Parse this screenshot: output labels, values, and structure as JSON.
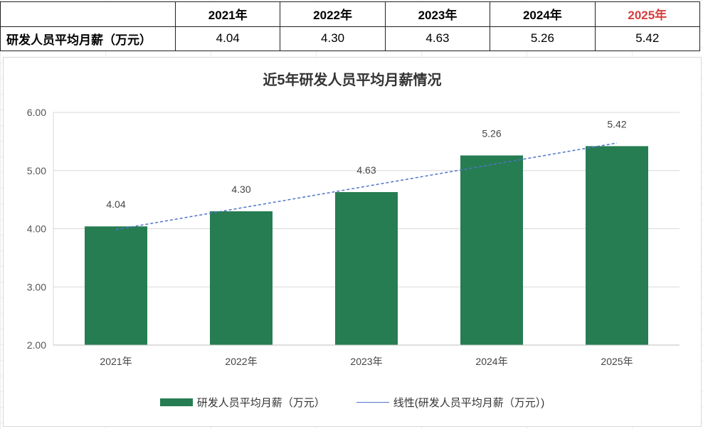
{
  "table": {
    "headers": [
      "",
      "2021年",
      "2022年",
      "2023年",
      "2024年",
      "2025年"
    ],
    "row_label": "研发人员平均月薪（万元）",
    "values": [
      "4.04",
      "4.30",
      "4.63",
      "5.26",
      "5.42"
    ]
  },
  "chart_data": {
    "type": "bar",
    "title": "近5年研发人员平均月薪情况",
    "categories": [
      "2021年",
      "2022年",
      "2023年",
      "2024年",
      "2025年"
    ],
    "series": [
      {
        "name": "研发人员平均月薪（万元）",
        "values": [
          4.04,
          4.3,
          4.63,
          5.26,
          5.42
        ],
        "color": "#267d52"
      }
    ],
    "trendline": {
      "name": "线性(研发人员平均月薪（万元）)",
      "color": "#4f74c7",
      "style": "dashed"
    },
    "data_labels": [
      "4.04",
      "4.30",
      "4.63",
      "5.26",
      "5.42"
    ],
    "ylim": [
      2.0,
      6.0
    ],
    "yticks": [
      "2.00",
      "3.00",
      "4.00",
      "5.00",
      "6.00"
    ],
    "grid": true,
    "legend_position": "bottom"
  },
  "colors": {
    "bar": "#267d52",
    "trend": "#4f74c7",
    "highlight_header": "#d83b3b"
  }
}
